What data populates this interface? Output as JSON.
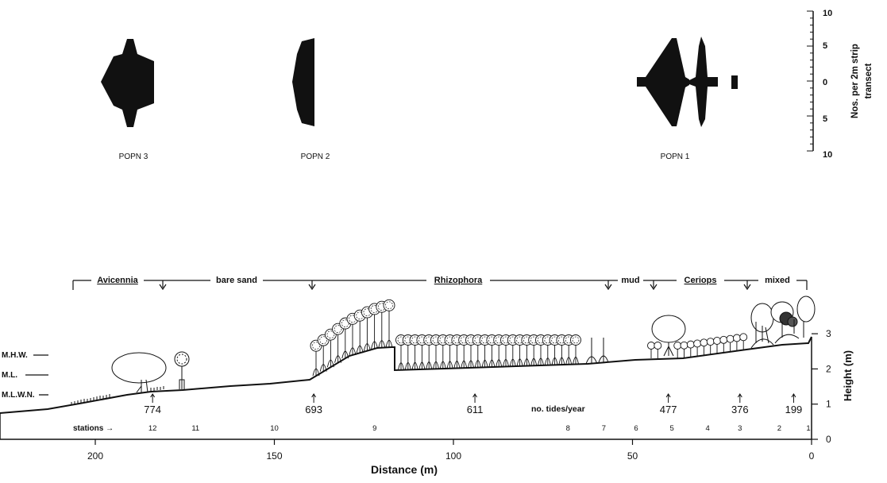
{
  "populations": [
    {
      "label": "POPN 3"
    },
    {
      "label": "POPN 2"
    },
    {
      "label": "POPN 1"
    }
  ],
  "kite_scale": {
    "ticks": [
      "10",
      "5",
      "0",
      "5",
      "10"
    ],
    "label_line1": "Nos. per 2m strip",
    "label_line2": "transect"
  },
  "zones": [
    {
      "label": "Avicennia",
      "underline": true
    },
    {
      "label": "bare sand",
      "underline": false
    },
    {
      "label": "Rhizophora",
      "underline": true
    },
    {
      "label": "mud",
      "underline": false
    },
    {
      "label": "Ceriops",
      "underline": true
    },
    {
      "label": "mixed",
      "underline": false
    }
  ],
  "tide_levels": [
    {
      "label": "M.H.W.",
      "height": 2.85
    },
    {
      "label": "M.L.",
      "height": 2.3
    },
    {
      "label": "M.L.W.N.",
      "height": 1.35
    }
  ],
  "tides_per_year": {
    "label": "no. tides/year",
    "points": [
      {
        "distance": 184,
        "value": "774"
      },
      {
        "distance": 139,
        "value": "693"
      },
      {
        "distance": 94,
        "value": "611"
      },
      {
        "distance": 40,
        "value": "477"
      },
      {
        "distance": 20,
        "value": "376"
      },
      {
        "distance": 5,
        "value": "199"
      }
    ]
  },
  "stations": {
    "label": "stations →",
    "items": [
      {
        "n": "12",
        "distance": 184
      },
      {
        "n": "11",
        "distance": 172
      },
      {
        "n": "10",
        "distance": 150
      },
      {
        "n": "9",
        "distance": 122
      },
      {
        "n": "8",
        "distance": 68
      },
      {
        "n": "7",
        "distance": 58
      },
      {
        "n": "6",
        "distance": 49
      },
      {
        "n": "5",
        "distance": 39
      },
      {
        "n": "4",
        "distance": 29
      },
      {
        "n": "3",
        "distance": 20
      },
      {
        "n": "2",
        "distance": 9
      },
      {
        "n": "1",
        "distance": 0
      }
    ]
  },
  "x_axis": {
    "label": "Distance (m)",
    "ticks": [
      {
        "value": 200,
        "label": "200"
      },
      {
        "value": 150,
        "label": "150"
      },
      {
        "value": 100,
        "label": "100"
      },
      {
        "value": 50,
        "label": "50"
      },
      {
        "value": 0,
        "label": "0"
      }
    ]
  },
  "y_axis": {
    "label": "Height (m)",
    "ticks": [
      {
        "value": 0,
        "label": "0"
      },
      {
        "value": 1,
        "label": "1"
      },
      {
        "value": 2,
        "label": "2"
      },
      {
        "value": 3,
        "label": "3"
      }
    ]
  }
}
